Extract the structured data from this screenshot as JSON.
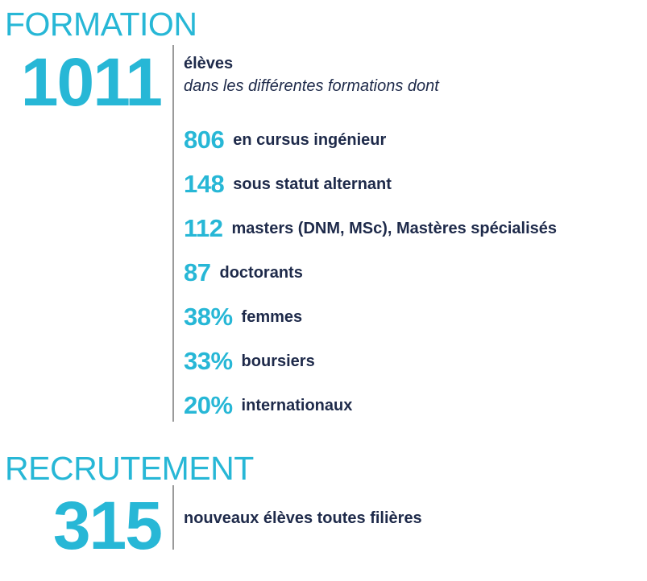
{
  "formation": {
    "title": "FORMATION",
    "total": "1011",
    "total_label": "élèves",
    "total_sub": "dans les différentes formations dont",
    "stats": [
      {
        "value": "806",
        "label": "en cursus ingénieur"
      },
      {
        "value": "148",
        "label": "sous statut alternant"
      },
      {
        "value": "112",
        "label": "masters (DNM, MSc), Mastères spécialisés"
      },
      {
        "value": "87",
        "label": "doctorants"
      },
      {
        "value": "38%",
        "label": "femmes"
      },
      {
        "value": "33%",
        "label": "boursiers"
      },
      {
        "value": "20%",
        "label": "internationaux"
      }
    ]
  },
  "recrutement": {
    "title": "RECRUTEMENT",
    "total": "315",
    "label": "nouveaux élèves toutes filières"
  },
  "colors": {
    "accent": "#27b7d6",
    "text": "#1e2a4a",
    "divider": "#9a9a9a"
  }
}
